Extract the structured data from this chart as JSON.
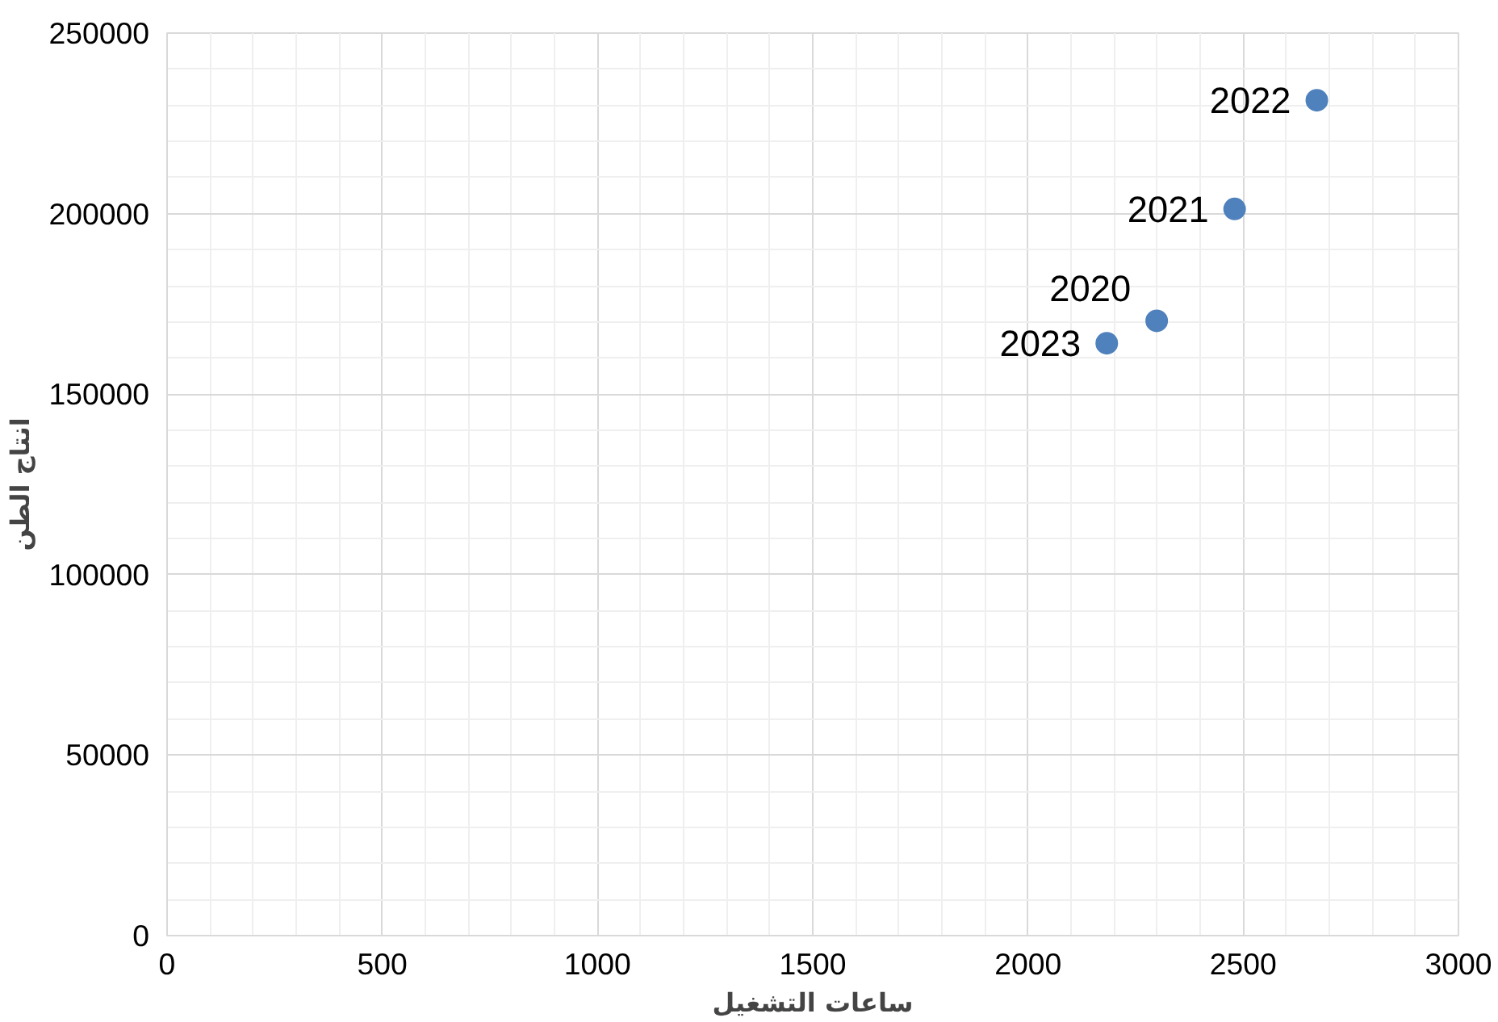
{
  "chart_data": {
    "type": "scatter",
    "xlabel": "ساعات التشغيل",
    "ylabel": "انتاج الطن",
    "x": [
      2299,
      2480,
      2671,
      2183
    ],
    "series": [
      {
        "color": "#4f81bd",
        "values": [
          170300,
          201300,
          231400,
          164100
        ]
      }
    ],
    "annotations": [
      {
        "text": "2020",
        "x": 2299,
        "y": 170300
      },
      {
        "text": "2021",
        "x": 2480,
        "y": 201300
      },
      {
        "text": "2022",
        "x": 2671,
        "y": 231400
      },
      {
        "text": "2023",
        "x": 2183,
        "y": 164100
      }
    ],
    "xlim": [
      0,
      3000
    ],
    "xticks": [
      0,
      500,
      1000,
      1500,
      2000,
      2500,
      3000
    ],
    "ylim": [
      0,
      250000
    ],
    "yticks": [
      0,
      50000,
      100000,
      150000,
      200000,
      250000
    ],
    "grid": true,
    "marker": "circle"
  }
}
